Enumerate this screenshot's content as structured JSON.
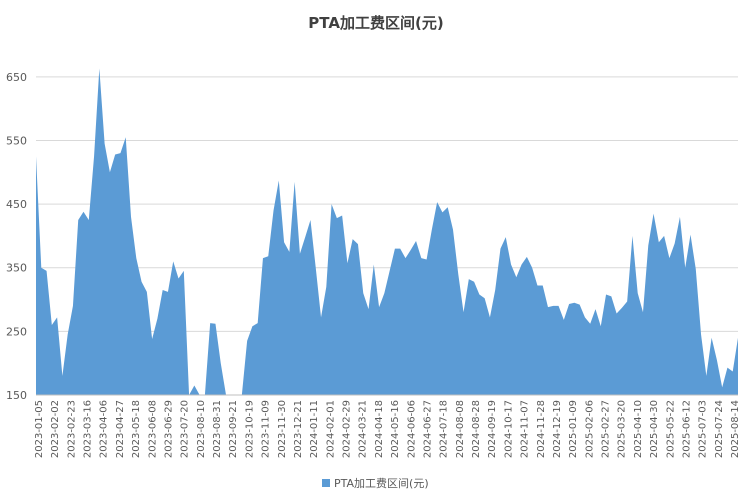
{
  "chart_data": {
    "type": "area",
    "title": "PTA加工费区间(元)",
    "xlabel": "",
    "ylabel": "",
    "ylim": [
      150,
      700
    ],
    "yticks": [
      150,
      250,
      350,
      450,
      550,
      650
    ],
    "grid": "horizontal",
    "legend_position": "bottom",
    "color": "#5b9bd5",
    "x_tick_labels": [
      "2023-01-05",
      "2023-02-02",
      "2023-02-23",
      "2023-03-16",
      "2023-04-06",
      "2023-04-27",
      "2023-05-18",
      "2023-06-08",
      "2023-06-29",
      "2023-07-20",
      "2023-08-10",
      "2023-08-31",
      "2023-09-21",
      "2023-10-19",
      "2023-11-09",
      "2023-11-30",
      "2023-12-21",
      "2024-01-11",
      "2024-02-01",
      "2024-02-29",
      "2024-03-21",
      "2024-04-18",
      "2024-05-16",
      "2024-06-06",
      "2024-06-27",
      "2024-07-18",
      "2024-08-08",
      "2024-08-28",
      "2024-09-19",
      "2024-10-17",
      "2024-11-07",
      "2024-11-28",
      "2024-12-19",
      "2025-01-09",
      "2025-02-06",
      "2025-02-27",
      "2025-03-20",
      "2025-04-10",
      "2025-04-30",
      "2025-05-22",
      "2025-06-12",
      "2025-07-03",
      "2025-07-24",
      "2025-08-14"
    ],
    "series": [
      {
        "name": "PTA加工费区间(元)",
        "values": [
          525,
          350,
          345,
          260,
          272,
          180,
          245,
          290,
          425,
          438,
          425,
          525,
          663,
          545,
          500,
          528,
          530,
          555,
          430,
          365,
          328,
          312,
          238,
          270,
          315,
          312,
          360,
          333,
          345,
          150,
          165,
          150,
          150,
          263,
          262,
          200,
          150,
          150,
          150,
          150,
          235,
          258,
          263,
          365,
          368,
          440,
          487,
          390,
          375,
          485,
          372,
          398,
          425,
          350,
          272,
          320,
          450,
          428,
          432,
          357,
          395,
          387,
          310,
          285,
          355,
          288,
          310,
          345,
          380,
          380,
          365,
          378,
          392,
          365,
          363,
          410,
          453,
          437,
          445,
          410,
          340,
          280,
          332,
          328,
          308,
          302,
          272,
          315,
          380,
          398,
          355,
          335,
          355,
          367,
          350,
          322,
          322,
          288,
          290,
          290,
          268,
          293,
          295,
          292,
          272,
          262,
          285,
          258,
          308,
          305,
          278,
          287,
          297,
          400,
          310,
          280,
          385,
          435,
          390,
          400,
          365,
          388,
          430,
          350,
          402,
          348,
          245,
          180,
          240,
          205,
          162,
          193,
          187,
          240
        ]
      }
    ]
  }
}
